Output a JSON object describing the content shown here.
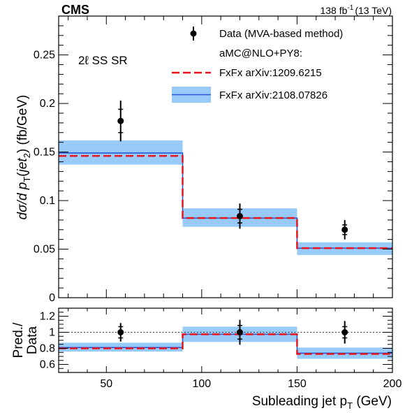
{
  "header": {
    "experiment": "CMS",
    "lumi_value": "138 fb",
    "lumi_exponent": "-1",
    "lumi_energy": "(13 TeV)"
  },
  "colors": {
    "data": "#000000",
    "fxfx_2012": "#e8141e",
    "fxfx_2021_line": "#2b57d6",
    "fxfx_2021_band": "#98cbf7",
    "reference_line": "#333333"
  },
  "chart_data": [
    {
      "type": "line",
      "panel": "main",
      "region_label": "2ℓ SS SR",
      "ylabel": {
        "prefix": "dσ/d p",
        "sub_T": "T",
        "paren_open": "(",
        "jet": "jet",
        "sub_2": "2",
        "paren_close": ")",
        "unit": " (fb/GeV)"
      },
      "xlim": [
        25,
        200
      ],
      "ylim": [
        0,
        0.29
      ],
      "bin_edges": [
        25,
        90,
        150,
        200
      ],
      "yticks": [
        0,
        0.05,
        0.1,
        0.15,
        0.2,
        0.25
      ],
      "ytick_labels": [
        "0",
        "0.05",
        "0.1",
        "0.15",
        "0.2",
        "0.25"
      ],
      "legend": {
        "placement": "top-right",
        "data_label": "Data (MVA-based method)",
        "group_label": "aMC@NLO+PY8:",
        "fxfx_2012_label": "FxFx arXiv:1209.6215",
        "fxfx_2021_label": "FxFx arXiv:2108.07826"
      },
      "series": [
        {
          "name": "Data (MVA-based method)",
          "style": "points",
          "x": [
            57.5,
            120,
            175
          ],
          "y": [
            0.182,
            0.084,
            0.07
          ],
          "stat_err": [
            0.012,
            0.007,
            0.005
          ],
          "total_err": [
            0.021,
            0.013,
            0.01
          ]
        },
        {
          "name": "FxFx arXiv:1209.6215",
          "style": "dashed-step",
          "values": [
            0.146,
            0.082,
            0.051
          ]
        },
        {
          "name": "FxFx arXiv:2108.07826",
          "style": "step-with-band",
          "values": [
            0.149,
            0.082,
            0.051
          ],
          "band_low": [
            0.137,
            0.073,
            0.044
          ],
          "band_high": [
            0.162,
            0.092,
            0.057
          ]
        }
      ]
    },
    {
      "type": "line",
      "panel": "ratio",
      "ylabel_line1": "Pred./",
      "ylabel_line2": "Data",
      "xlabel_text": "Subleading jet p",
      "xlabel_sub": "T",
      "xlabel_unit": " (GeV)",
      "xlim": [
        25,
        200
      ],
      "ylim": [
        0.5,
        1.3
      ],
      "bin_edges": [
        25,
        90,
        150,
        200
      ],
      "reference_line": 1.0,
      "yticks": [
        0.6,
        0.8,
        1.0,
        1.2
      ],
      "ytick_labels": [
        "0.6",
        "0.8",
        "1",
        "1.2"
      ],
      "xticks": [
        50,
        100,
        150,
        200
      ],
      "xtick_labels": [
        "50",
        "100",
        "150",
        "200"
      ],
      "series": [
        {
          "name": "Data (MVA-based method)",
          "style": "points",
          "x": [
            57.5,
            120,
            175
          ],
          "y": [
            1.0,
            1.0,
            1.0
          ],
          "stat_err": [
            0.07,
            0.085,
            0.07
          ],
          "total_err": [
            0.115,
            0.155,
            0.14
          ]
        },
        {
          "name": "FxFx arXiv:1209.6215",
          "style": "dashed-step",
          "values": [
            0.8,
            0.975,
            0.73
          ]
        },
        {
          "name": "FxFx arXiv:2108.07826",
          "style": "step-with-band",
          "values": [
            0.81,
            0.975,
            0.74
          ],
          "band_low": [
            0.76,
            0.88,
            0.67
          ],
          "band_high": [
            0.87,
            1.07,
            0.81
          ]
        }
      ]
    }
  ]
}
